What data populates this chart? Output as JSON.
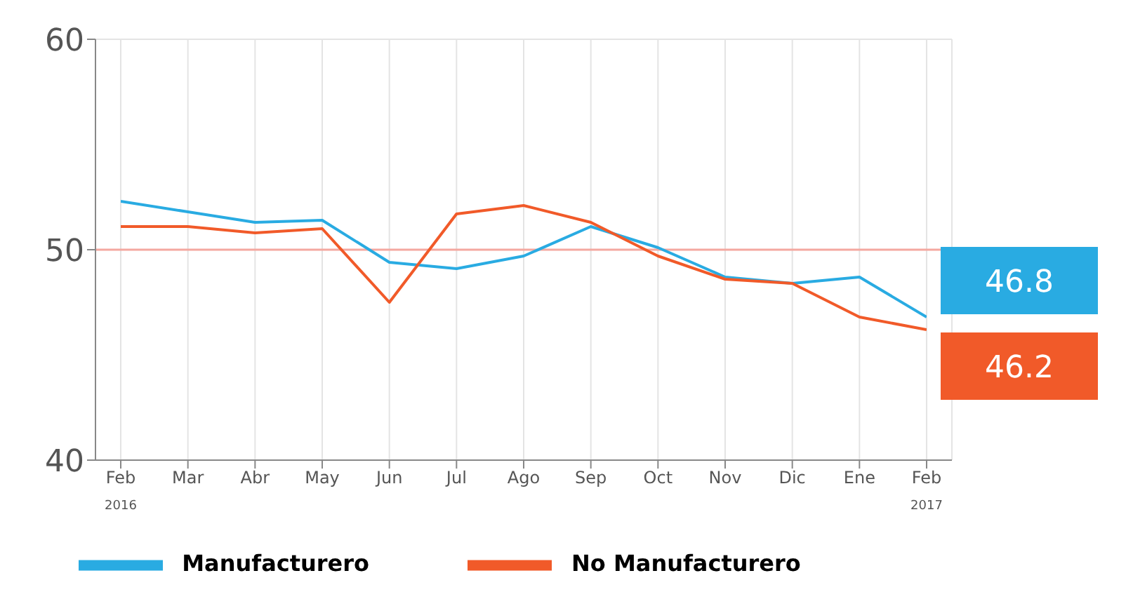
{
  "chart_data": {
    "type": "line",
    "categories": [
      "Feb",
      "Mar",
      "Abr",
      "May",
      "Jun",
      "Jul",
      "Ago",
      "Sep",
      "Oct",
      "Nov",
      "Dic",
      "Ene",
      "Feb"
    ],
    "series": [
      {
        "name": "Manufacturero",
        "color": "#29abe2",
        "values": [
          52.3,
          51.8,
          51.3,
          51.4,
          49.4,
          49.1,
          49.7,
          51.1,
          50.1,
          48.7,
          48.4,
          48.7,
          46.8
        ],
        "value_labels": [
          null,
          null,
          null,
          null,
          null,
          null,
          null,
          null,
          null,
          null,
          null,
          null,
          "46.8"
        ]
      },
      {
        "name": "No Manufacturero",
        "color": "#f15a29",
        "values": [
          51.1,
          51.1,
          50.8,
          51.0,
          47.5,
          51.7,
          52.1,
          51.3,
          49.7,
          48.6,
          48.4,
          46.8,
          46.2
        ],
        "value_labels": [
          null,
          null,
          null,
          null,
          null,
          null,
          null,
          null,
          null,
          null,
          null,
          null,
          "46.2"
        ]
      }
    ],
    "ylim": [
      40,
      60
    ],
    "yticks": [
      40,
      50,
      60
    ],
    "grid": true,
    "legend": "bottom",
    "line_style": "solid",
    "ref_lines": [
      {
        "axis": "y",
        "value": 50,
        "color": "#f4a8a0"
      }
    ],
    "annotations": [
      "2016",
      "2017"
    ]
  }
}
